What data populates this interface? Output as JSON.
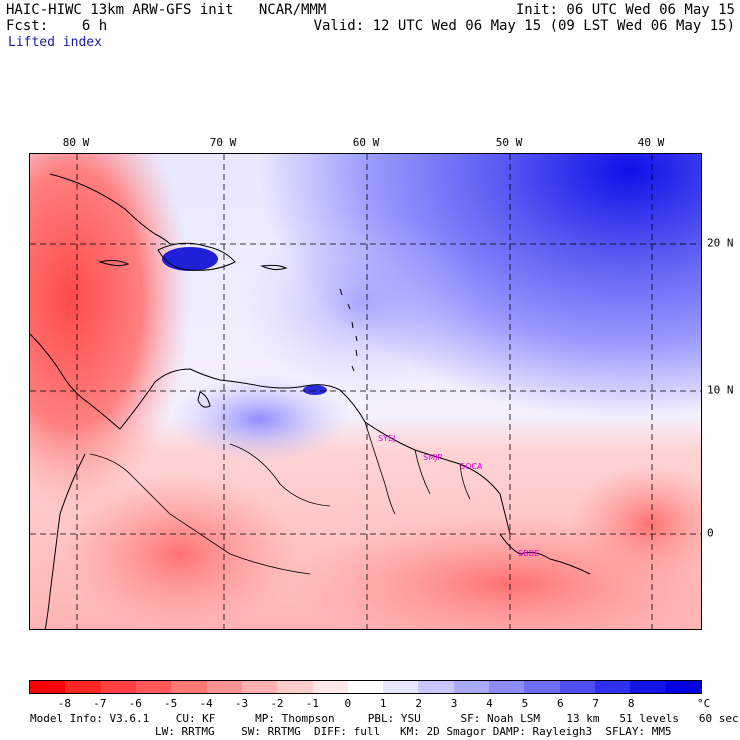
{
  "header": {
    "line1_left": "HAIC-HIWC 13km ARW-GFS init   NCAR/MMM",
    "line1_right": "Init: 06 UTC Wed 06 May 15",
    "line2_left": "Fcst:    6 h",
    "line2_right": "Valid: 12 UTC Wed 06 May 15 (09 LST Wed 06 May 15)",
    "field": "Lifted index"
  },
  "axes": {
    "longitude_labels": [
      "80 W",
      "70 W",
      "60 W",
      "50 W",
      "40 W"
    ],
    "latitude_labels": [
      "20 N",
      "10 N",
      "0"
    ]
  },
  "stations": [
    "SYEJ",
    "SMJP",
    "SOCA",
    "SBBE"
  ],
  "colorbar": {
    "unit": "°C",
    "ticks": [
      "-8",
      "-7",
      "-6",
      "-5",
      "-4",
      "-3",
      "-2",
      "-1",
      "0",
      "1",
      "2",
      "3",
      "4",
      "5",
      "6",
      "7",
      "8"
    ],
    "colors": [
      "#ff0000",
      "#ff2626",
      "#ff4040",
      "#ff5a5a",
      "#ff7878",
      "#ff9494",
      "#ffb0b0",
      "#ffcccc",
      "#ffe8e8",
      "#ffffff",
      "#e6e6ff",
      "#c8c8ff",
      "#aaaaff",
      "#8c8cff",
      "#6e6ef8",
      "#5050f0",
      "#3030f0",
      "#1414e6",
      "#0000e0"
    ]
  },
  "model_info": {
    "line1": "Model Info: V3.6.1    CU: KF      MP: Thompson     PBL: YSU      SF: Noah LSM    13 km   51 levels   60 sec",
    "line2": "LW: RRTMG    SW: RRTMG  DIFF: full   KM: 2D Smagor DAMP: Rayleigh3  SFLAY: MM5"
  }
}
